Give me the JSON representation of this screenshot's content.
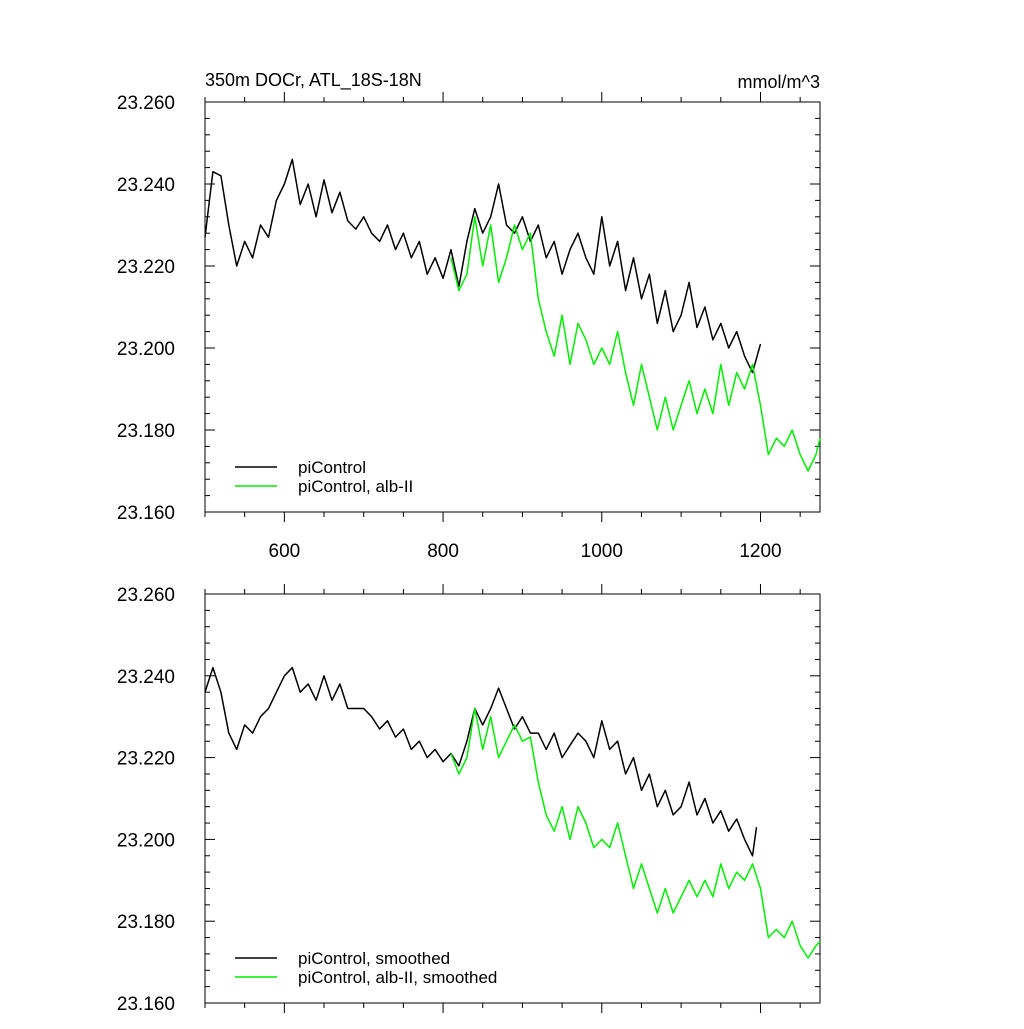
{
  "chart_data": [
    {
      "type": "line",
      "title_left": "350m DOCr, ATL_18S-18N",
      "title_right": "mmol/m^3",
      "xlabel": "",
      "ylabel": "",
      "xlim": [
        500,
        1275
      ],
      "ylim": [
        23.16,
        23.26
      ],
      "xticks": [
        600,
        800,
        1000,
        1200
      ],
      "xtick_labels": [
        "600",
        "800",
        "1000",
        "1200"
      ],
      "show_xtick_labels": true,
      "yticks": [
        23.16,
        23.18,
        23.2,
        23.22,
        23.24,
        23.26
      ],
      "ytick_labels": [
        "23.160",
        "23.180",
        "23.200",
        "23.220",
        "23.240",
        "23.260"
      ],
      "legend_position": "bottom-left",
      "series": [
        {
          "name": "piControl",
          "color": "#000000",
          "x": [
            500,
            510,
            520,
            530,
            540,
            550,
            560,
            570,
            580,
            590,
            600,
            610,
            620,
            630,
            640,
            650,
            660,
            670,
            680,
            690,
            700,
            710,
            720,
            730,
            740,
            750,
            760,
            770,
            780,
            790,
            800,
            810,
            820,
            830,
            840,
            850,
            860,
            870,
            880,
            890,
            900,
            910,
            920,
            930,
            940,
            950,
            960,
            970,
            980,
            990,
            1000,
            1010,
            1020,
            1030,
            1040,
            1050,
            1060,
            1070,
            1080,
            1090,
            1100,
            1110,
            1120,
            1130,
            1140,
            1150,
            1160,
            1170,
            1180,
            1190,
            1200
          ],
          "y": [
            23.227,
            23.243,
            23.242,
            23.23,
            23.22,
            23.226,
            23.222,
            23.23,
            23.227,
            23.236,
            23.24,
            23.246,
            23.235,
            23.24,
            23.232,
            23.241,
            23.233,
            23.238,
            23.231,
            23.229,
            23.232,
            23.228,
            23.226,
            23.23,
            23.224,
            23.228,
            23.222,
            23.226,
            23.218,
            23.222,
            23.217,
            23.224,
            23.215,
            23.226,
            23.234,
            23.228,
            23.232,
            23.24,
            23.23,
            23.228,
            23.232,
            23.226,
            23.23,
            23.222,
            23.226,
            23.218,
            23.224,
            23.228,
            23.222,
            23.218,
            23.232,
            23.22,
            23.226,
            23.214,
            23.222,
            23.212,
            23.218,
            23.206,
            23.214,
            23.204,
            23.208,
            23.216,
            23.205,
            23.21,
            23.202,
            23.206,
            23.2,
            23.204,
            23.198,
            23.194,
            23.201
          ]
        },
        {
          "name": "piControl, alb-II",
          "color": "#00ee00",
          "x": [
            810,
            820,
            830,
            840,
            850,
            860,
            870,
            880,
            890,
            900,
            910,
            920,
            930,
            940,
            950,
            960,
            970,
            980,
            990,
            1000,
            1010,
            1020,
            1030,
            1040,
            1050,
            1060,
            1070,
            1080,
            1090,
            1100,
            1110,
            1120,
            1130,
            1140,
            1150,
            1160,
            1170,
            1180,
            1190,
            1200,
            1210,
            1220,
            1230,
            1240,
            1250,
            1260,
            1270,
            1275
          ],
          "y": [
            23.222,
            23.214,
            23.218,
            23.232,
            23.22,
            23.23,
            23.216,
            23.222,
            23.23,
            23.224,
            23.228,
            23.212,
            23.204,
            23.198,
            23.208,
            23.196,
            23.206,
            23.202,
            23.196,
            23.2,
            23.196,
            23.204,
            23.194,
            23.186,
            23.196,
            23.188,
            23.18,
            23.188,
            23.18,
            23.186,
            23.192,
            23.184,
            23.19,
            23.184,
            23.196,
            23.186,
            23.194,
            23.19,
            23.196,
            23.186,
            23.174,
            23.178,
            23.176,
            23.18,
            23.174,
            23.17,
            23.174,
            23.178
          ]
        }
      ]
    },
    {
      "type": "line",
      "title_left": "",
      "title_right": "",
      "xlabel": "",
      "ylabel": "",
      "xlim": [
        500,
        1275
      ],
      "ylim": [
        23.16,
        23.26
      ],
      "xticks": [
        600,
        800,
        1000,
        1200
      ],
      "xtick_labels": [],
      "show_xtick_labels": false,
      "yticks": [
        23.16,
        23.18,
        23.2,
        23.22,
        23.24,
        23.26
      ],
      "ytick_labels": [
        "23.160",
        "23.180",
        "23.200",
        "23.220",
        "23.240",
        "23.260"
      ],
      "legend_position": "bottom-left",
      "series": [
        {
          "name": "piControl, smoothed",
          "color": "#000000",
          "x": [
            500,
            510,
            520,
            530,
            540,
            550,
            560,
            570,
            580,
            590,
            600,
            610,
            620,
            630,
            640,
            650,
            660,
            670,
            680,
            690,
            700,
            710,
            720,
            730,
            740,
            750,
            760,
            770,
            780,
            790,
            800,
            810,
            820,
            830,
            840,
            850,
            860,
            870,
            880,
            890,
            900,
            910,
            920,
            930,
            940,
            950,
            960,
            970,
            980,
            990,
            1000,
            1010,
            1020,
            1030,
            1040,
            1050,
            1060,
            1070,
            1080,
            1090,
            1100,
            1110,
            1120,
            1130,
            1140,
            1150,
            1160,
            1170,
            1180,
            1190,
            1195
          ],
          "y": [
            23.236,
            23.242,
            23.236,
            23.226,
            23.222,
            23.228,
            23.226,
            23.23,
            23.232,
            23.236,
            23.24,
            23.242,
            23.236,
            23.238,
            23.234,
            23.24,
            23.234,
            23.238,
            23.232,
            23.232,
            23.232,
            23.23,
            23.227,
            23.229,
            23.225,
            23.227,
            23.222,
            23.224,
            23.22,
            23.222,
            23.219,
            23.221,
            23.218,
            23.224,
            23.232,
            23.228,
            23.232,
            23.237,
            23.232,
            23.227,
            23.23,
            23.226,
            23.226,
            23.222,
            23.226,
            23.22,
            23.223,
            23.226,
            23.224,
            23.22,
            23.229,
            23.222,
            23.224,
            23.216,
            23.22,
            23.212,
            23.216,
            23.208,
            23.212,
            23.206,
            23.208,
            23.214,
            23.206,
            23.21,
            23.204,
            23.207,
            23.202,
            23.205,
            23.2,
            23.196,
            23.203
          ]
        },
        {
          "name": "piControl, alb-II, smoothed",
          "color": "#00ee00",
          "x": [
            810,
            820,
            830,
            840,
            850,
            860,
            870,
            880,
            890,
            900,
            910,
            920,
            930,
            940,
            950,
            960,
            970,
            980,
            990,
            1000,
            1010,
            1020,
            1030,
            1040,
            1050,
            1060,
            1070,
            1080,
            1090,
            1100,
            1110,
            1120,
            1130,
            1140,
            1150,
            1160,
            1170,
            1180,
            1190,
            1200,
            1210,
            1220,
            1230,
            1240,
            1250,
            1260,
            1270,
            1275
          ],
          "y": [
            23.221,
            23.216,
            23.22,
            23.232,
            23.222,
            23.23,
            23.22,
            23.224,
            23.228,
            23.224,
            23.225,
            23.214,
            23.206,
            23.202,
            23.208,
            23.2,
            23.208,
            23.204,
            23.198,
            23.2,
            23.198,
            23.204,
            23.196,
            23.188,
            23.194,
            23.188,
            23.182,
            23.188,
            23.182,
            23.186,
            23.19,
            23.186,
            23.19,
            23.186,
            23.194,
            23.188,
            23.192,
            23.19,
            23.194,
            23.188,
            23.176,
            23.178,
            23.176,
            23.18,
            23.174,
            23.171,
            23.174,
            23.175
          ]
        }
      ]
    }
  ]
}
